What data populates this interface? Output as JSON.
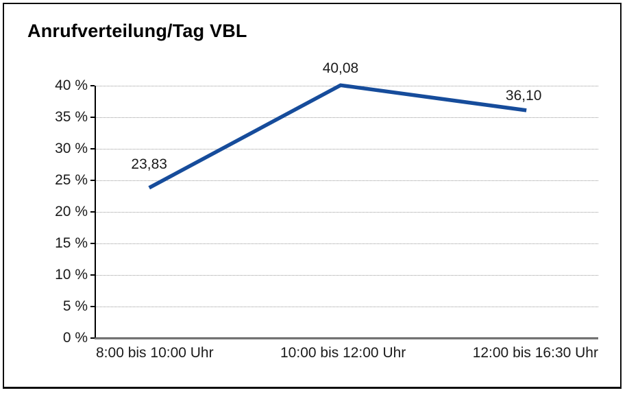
{
  "window": {
    "background": "#ffffff",
    "frame_border_color": "#0d0d0d"
  },
  "chart_data": {
    "type": "line",
    "title": "Anrufverteilung/Tag VBL",
    "categories": [
      "8:00 bis 10:00 Uhr",
      "10:00 bis 12:00 Uhr",
      "12:00 bis 16:30 Uhr"
    ],
    "values": [
      23.83,
      40.08,
      36.1
    ],
    "value_labels": [
      "23,83",
      "40,08",
      "36,10"
    ],
    "xlabel": "",
    "ylabel": "",
    "ylim": [
      0,
      40
    ],
    "y_tick_step": 5,
    "y_tick_labels_top_to_bottom": [
      "40 %",
      "35 %",
      "30 %",
      "25 %",
      "20 %",
      "15 %",
      "10 %",
      "5 %",
      "0 %"
    ],
    "grid": "horizontal-dotted",
    "legend": "none",
    "line_color": "#164C9B",
    "gridline_color": "#999999",
    "axis_color": "#000000",
    "baseline_color": "#7d7d7d",
    "text_color": "#1a1a1a"
  }
}
